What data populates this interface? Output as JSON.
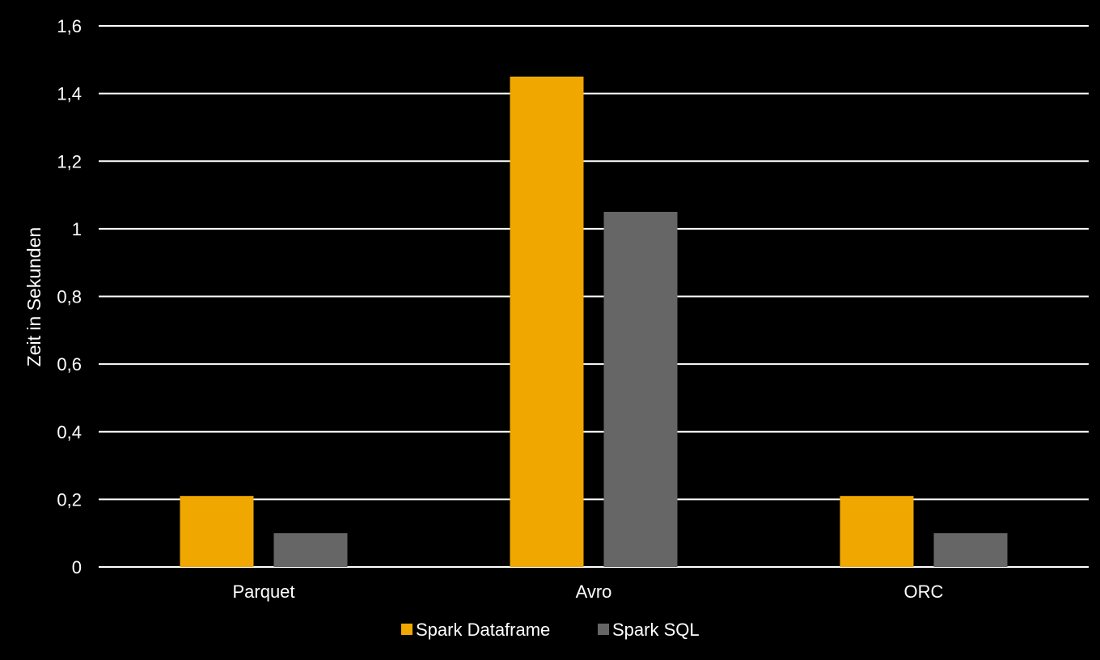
{
  "chart_data": {
    "type": "bar",
    "categories": [
      "Parquet",
      "Avro",
      "ORC"
    ],
    "series": [
      {
        "name": "Spark Dataframe",
        "values": [
          0.21,
          1.45,
          0.21
        ],
        "color": "#F0A800"
      },
      {
        "name": "Spark SQL",
        "values": [
          0.1,
          1.05,
          0.1
        ],
        "color": "#666666"
      }
    ],
    "ylabel": "Zeit in Sekunden",
    "xlabel": "",
    "ylim": [
      0,
      1.6
    ],
    "yticks": [
      0,
      0.2,
      0.4,
      0.6,
      0.8,
      1,
      1.2,
      1.4,
      1.6
    ],
    "ytick_labels": [
      "0",
      "0,2",
      "0,4",
      "0,6",
      "0,8",
      "1",
      "1,2",
      "1,4",
      "1,6"
    ],
    "grid": true,
    "legend_position": "bottom",
    "background": "#000000",
    "gridline_color": "#ffffff",
    "text_color": "#ffffff"
  }
}
